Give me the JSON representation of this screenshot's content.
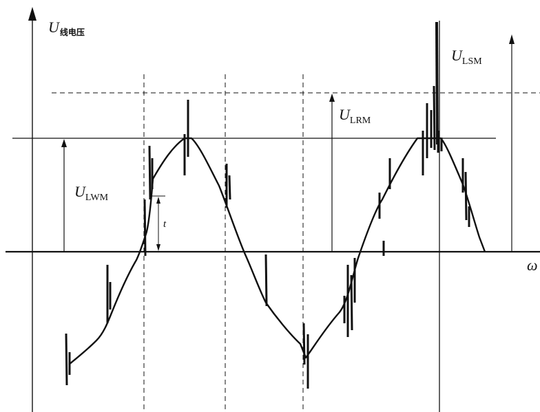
{
  "labels": {
    "y_axis": {
      "main": "U",
      "sub": "线电压"
    },
    "x_axis": "ω",
    "u_lwm": {
      "main": "U",
      "sub": "LWM"
    },
    "u_lrm": {
      "main": "U",
      "sub": "LRM"
    },
    "u_lsm": {
      "main": "U",
      "sub": "LSM"
    },
    "interval": "t"
  }
}
